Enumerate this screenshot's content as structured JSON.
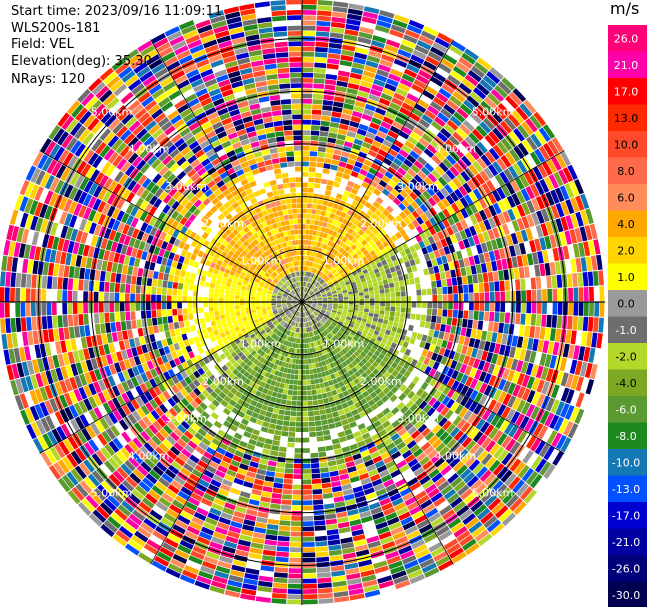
{
  "header": {
    "start_time": "Start time: 2023/09/16 11:09:11",
    "instrument": "WLS200s-181",
    "field": "Field: VEL",
    "elevation": "Elevation(deg): 35.30",
    "nrays": "NRays: 120"
  },
  "colorbar": {
    "unit": "m/s",
    "ticks": [
      "26.0",
      "21.0",
      "17.0",
      "13.0",
      "10.0",
      "8.0",
      "6.0",
      "4.0",
      "2.0",
      "1.0",
      "0.0",
      "-1.0",
      "-2.0",
      "-4.0",
      "-6.0",
      "-8.0",
      "-10.0",
      "-13.0",
      "-17.0",
      "-21.0",
      "-26.0",
      "-30.0"
    ],
    "colors": [
      "#ff0077",
      "#ff00aa",
      "#ff0000",
      "#ff2a00",
      "#ff4a2a",
      "#ff6a4a",
      "#ff8c5a",
      "#ffa800",
      "#ffd400",
      "#ffff00",
      "#9a9a9a",
      "#6e6e6e",
      "#b4d82a",
      "#7ea823",
      "#5a9a30",
      "#1e8a1e",
      "#1478b4",
      "#0050ff",
      "#0000d0",
      "#0000a0",
      "#000078",
      "#000050"
    ]
  },
  "chart_data": {
    "type": "heatmap",
    "projection": "polar (PPI)",
    "field": "VEL",
    "units": "m/s",
    "n_rays": 120,
    "range_rings_km": [
      1.0,
      2.0,
      3.0,
      4.0,
      5.0
    ],
    "ring_labels": [
      "1.00km",
      "2.00km",
      "3.00km",
      "4.00km",
      "5.00km"
    ],
    "near_field_pattern": [
      {
        "sector": "north-west to north-east",
        "velocity": "2.0 to 6.0 m/s (orange / yellow)"
      },
      {
        "sector": "west",
        "velocity": "1.0 to 2.0 m/s (yellow)"
      },
      {
        "sector": "center swirl",
        "velocity": "-1.0 to 0.0 m/s (gray)"
      },
      {
        "sector": "east and south-west",
        "velocity": "-1.0 to -2.0 m/s (light green)"
      },
      {
        "sector": "south",
        "velocity": "-4.0 to -6.0 m/s (green)"
      }
    ],
    "far_field": "random noise across full color scale beyond ~2.5 km",
    "grid": true
  }
}
